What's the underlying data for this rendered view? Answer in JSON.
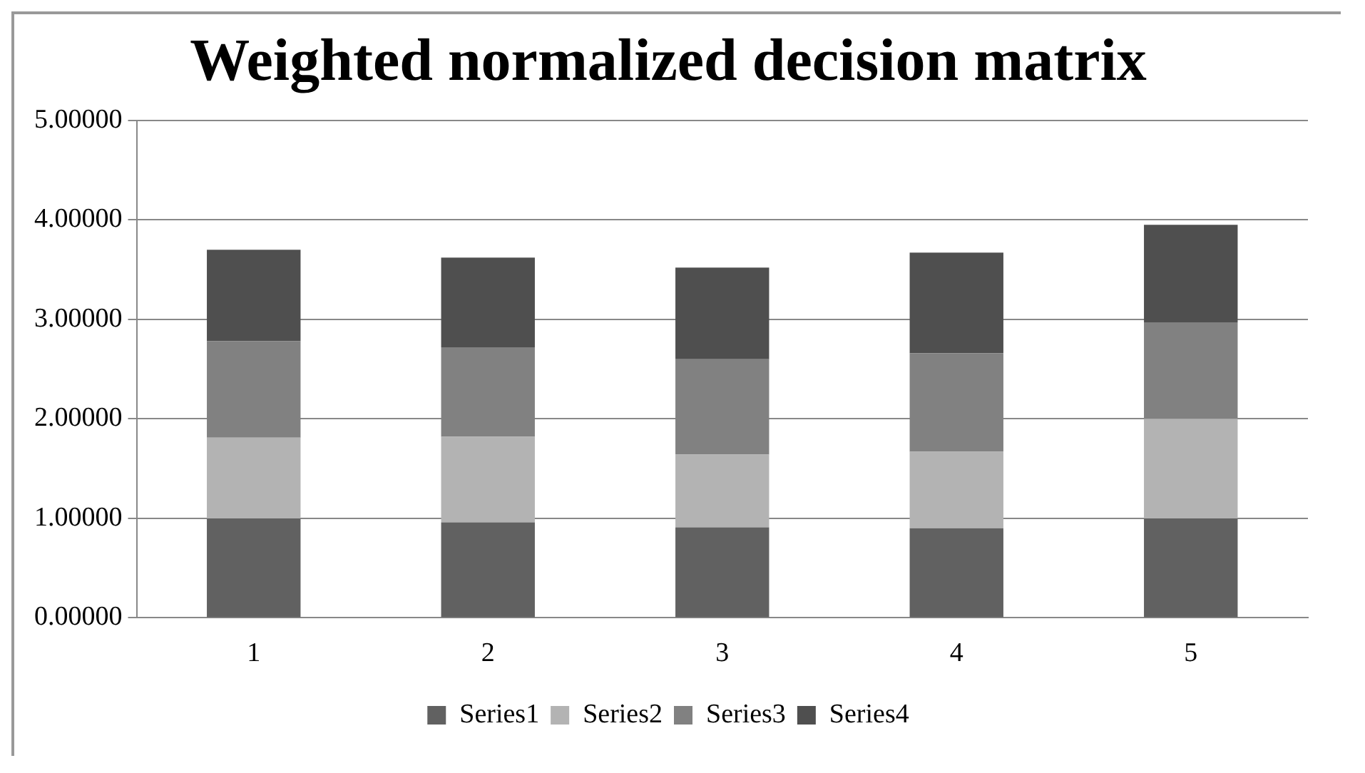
{
  "chart_data": {
    "type": "bar",
    "title": "Weighted normalized decision matrix",
    "categories": [
      "1",
      "2",
      "3",
      "4",
      "5"
    ],
    "stacked": true,
    "series": [
      {
        "name": "Series1",
        "color": "#616161",
        "values": [
          1.0,
          0.96,
          0.91,
          0.9,
          1.0
        ]
      },
      {
        "name": "Series2",
        "color": "#b3b3b3",
        "values": [
          0.81,
          0.86,
          0.73,
          0.77,
          1.0
        ]
      },
      {
        "name": "Series3",
        "color": "#818181",
        "values": [
          0.97,
          0.9,
          0.96,
          0.99,
          0.97
        ]
      },
      {
        "name": "Series4",
        "color": "#4f4f4f",
        "values": [
          0.92,
          0.9,
          0.92,
          1.01,
          0.98
        ]
      }
    ],
    "ylim": [
      0,
      5
    ],
    "yticks": [
      {
        "value": 0,
        "label": "0.00000"
      },
      {
        "value": 1,
        "label": "1.00000"
      },
      {
        "value": 2,
        "label": "2.00000"
      },
      {
        "value": 3,
        "label": "3.00000"
      },
      {
        "value": 4,
        "label": "4.00000"
      },
      {
        "value": 5,
        "label": "5.00000"
      }
    ],
    "grid": "y",
    "legend": "bottom"
  }
}
